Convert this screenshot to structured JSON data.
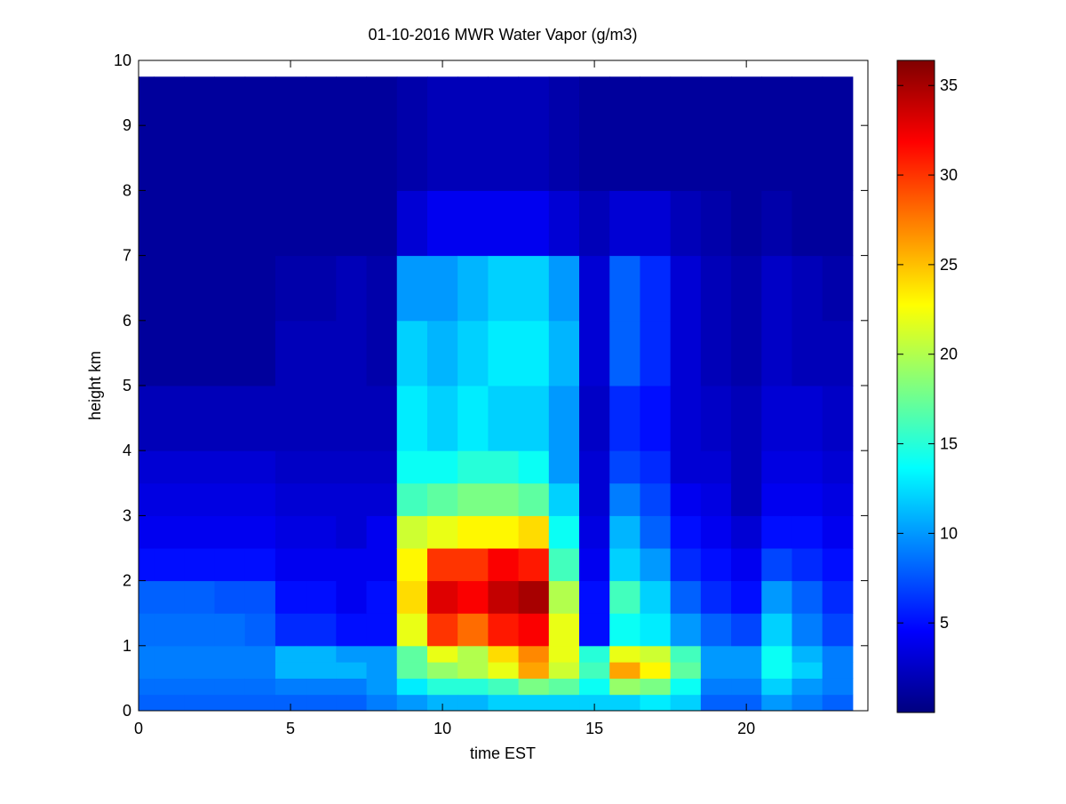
{
  "chart_data": {
    "type": "heatmap",
    "title": "01-10-2016 MWR Water Vapor (g/m3)",
    "xlabel": "time EST",
    "ylabel": "height km",
    "xlim": [
      0,
      24
    ],
    "ylim": [
      0,
      10
    ],
    "xticks": [
      0,
      5,
      10,
      15,
      20
    ],
    "yticks": [
      0,
      1,
      2,
      3,
      4,
      5,
      6,
      7,
      8,
      9,
      10
    ],
    "colormap": "jet",
    "clim": [
      0,
      36.4
    ],
    "cticks": [
      5,
      10,
      15,
      20,
      25,
      30,
      35
    ],
    "x_bins": [
      0,
      0.5,
      1.5,
      2.5,
      3.5,
      4.5,
      5.5,
      6.5,
      7.5,
      8.5,
      9.5,
      10.5,
      11.5,
      12.5,
      13.5,
      14.5,
      15.5,
      16.5,
      17.5,
      18.5,
      19.5,
      20.5,
      21.5,
      22.5,
      23.5
    ],
    "y_bins": [
      0,
      0.25,
      0.5,
      0.75,
      1,
      1.5,
      2,
      2.5,
      3,
      3.5,
      4,
      5,
      6,
      7,
      8,
      9.75
    ],
    "z": [
      [
        8,
        8.5,
        9,
        9,
        8.5,
        8,
        5,
        4,
        3.5,
        3,
        2,
        1,
        1,
        1,
        1
      ],
      [
        8,
        8.5,
        9,
        9,
        8.5,
        8,
        5,
        4,
        3.5,
        3,
        2,
        1,
        1,
        1,
        1
      ],
      [
        8,
        8.5,
        9,
        9,
        8.5,
        8,
        5,
        4,
        3.5,
        3,
        2,
        1,
        1,
        1,
        1
      ],
      [
        8,
        8.5,
        9,
        9,
        8.5,
        7.5,
        5,
        4,
        3.5,
        3,
        2,
        1,
        1,
        1,
        1
      ],
      [
        8,
        8.5,
        9,
        9,
        8,
        7.5,
        5,
        4,
        3.5,
        3,
        2,
        1,
        1,
        1,
        1
      ],
      [
        8,
        9,
        11,
        11,
        6,
        5,
        4,
        3.5,
        3,
        2.5,
        2,
        2,
        1.5,
        1,
        1
      ],
      [
        8,
        9,
        11,
        11,
        6,
        5,
        4,
        3.5,
        3,
        2.5,
        2,
        2,
        1.5,
        1,
        1
      ],
      [
        8,
        9,
        11,
        10,
        5,
        4,
        4,
        3,
        3,
        2.5,
        2,
        2,
        2,
        1,
        1
      ],
      [
        9,
        10,
        10,
        10,
        5,
        5,
        4,
        4,
        3,
        2.5,
        2,
        1.5,
        1.5,
        1,
        1
      ],
      [
        10,
        13,
        17,
        17,
        22,
        24,
        23,
        21,
        16,
        14,
        13,
        12,
        10,
        3,
        1.5
      ],
      [
        11,
        15,
        19,
        22,
        30,
        33,
        30,
        22,
        17,
        14,
        12,
        11,
        10,
        4,
        2
      ],
      [
        11,
        15,
        20,
        20,
        28,
        32,
        30,
        23,
        18,
        15,
        13,
        12,
        11,
        4,
        2
      ],
      [
        12,
        16,
        22,
        24,
        31,
        34,
        32,
        23,
        18,
        15,
        12,
        13,
        12,
        4,
        2
      ],
      [
        12,
        18,
        26,
        27,
        32,
        35,
        31,
        24,
        17,
        14,
        12,
        13,
        12,
        4,
        2
      ],
      [
        12,
        17,
        21,
        22,
        22,
        20,
        16,
        14,
        12,
        10,
        10,
        11,
        10,
        3,
        1.5
      ],
      [
        12,
        14,
        16,
        15,
        5,
        5,
        4,
        3.5,
        3,
        3,
        2.5,
        3,
        3,
        2,
        1
      ],
      [
        12,
        19,
        26,
        22,
        14,
        16,
        12,
        11,
        9,
        7,
        6,
        8,
        8,
        3,
        1
      ],
      [
        13,
        18,
        23,
        21,
        13,
        12,
        10,
        8,
        7,
        6,
        5,
        6,
        6,
        3,
        1
      ],
      [
        12,
        14,
        17,
        16,
        10,
        8,
        6,
        5,
        4,
        3,
        3,
        3,
        3,
        2,
        1
      ],
      [
        8,
        9,
        10,
        10,
        8,
        6,
        5,
        4,
        3.5,
        3,
        2.5,
        2,
        2,
        1.5,
        1
      ],
      [
        8,
        9,
        10,
        10,
        7,
        5,
        4,
        3,
        2,
        2,
        2,
        1.5,
        1.5,
        1,
        1
      ],
      [
        10,
        12,
        14,
        14,
        12,
        10,
        7,
        5,
        4,
        3.5,
        3,
        2.5,
        2.5,
        1.5,
        1
      ],
      [
        9,
        10,
        12,
        11,
        9,
        8,
        6,
        5,
        4,
        3.5,
        3,
        2,
        2,
        1,
        1
      ],
      [
        8,
        9,
        9,
        9,
        7,
        6,
        5,
        4,
        3.5,
        3,
        2.5,
        2,
        1.5,
        1,
        1
      ]
    ]
  }
}
